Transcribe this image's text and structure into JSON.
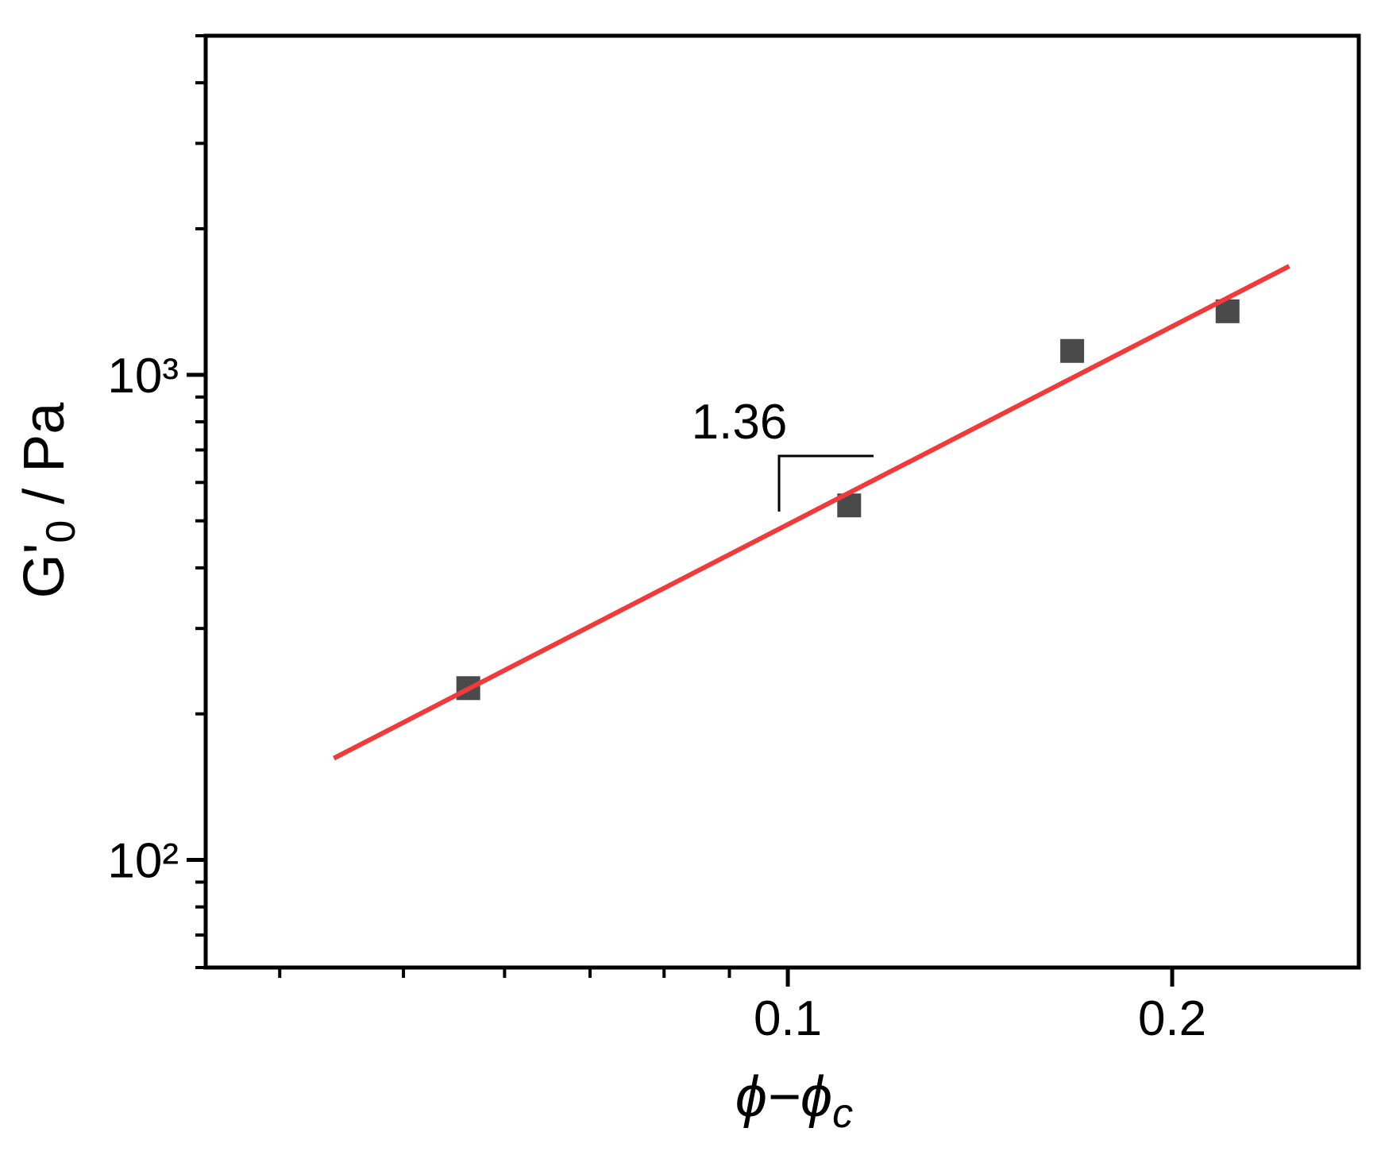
{
  "chart_data": {
    "type": "scatter",
    "xlabel": [
      "ϕ−ϕ",
      "c"
    ],
    "ylabel": [
      "G'",
      "0",
      " / Pa"
    ],
    "xscale": "log",
    "yscale": "log",
    "xlim": [
      0.035,
      0.28
    ],
    "ylim": [
      60,
      5000
    ],
    "xticks": [
      0.1,
      0.2
    ],
    "yticks": [
      {
        "value": 100,
        "label": "10²"
      },
      {
        "value": 1000,
        "label": "10³"
      }
    ],
    "series": [
      {
        "type": "scatter",
        "color": "#4a4a4a",
        "x": [
          0.0562,
          0.1117,
          0.167,
          0.221
        ],
        "values": [
          226,
          538,
          1120,
          1352
        ]
      },
      {
        "type": "line",
        "color": "#ee3b3b",
        "x": [
          0.0441,
          0.247
        ],
        "values": [
          162,
          1675
        ]
      }
    ],
    "annotations": [
      {
        "text": "1.36"
      }
    ]
  }
}
